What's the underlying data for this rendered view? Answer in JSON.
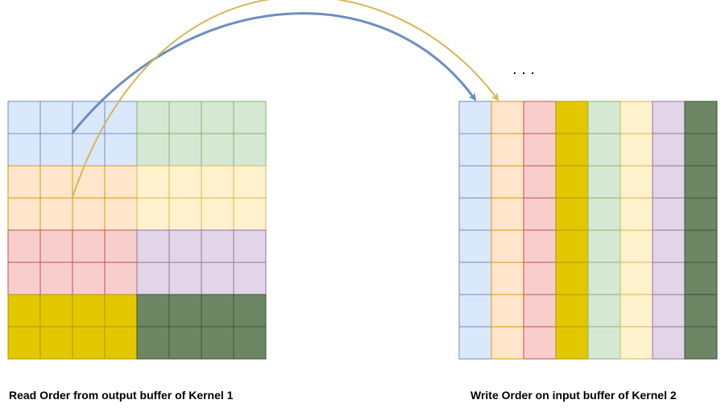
{
  "captions": {
    "left": "Read Order from output buffer of Kernel 1",
    "right": "Write Order on input buffer of Kernel 2"
  },
  "ellipsis": ". . .",
  "palette": {
    "blue": {
      "fill": "#dae8fc",
      "stroke": "#6c8ebf"
    },
    "green": {
      "fill": "#d5e8d4",
      "stroke": "#82b366"
    },
    "orange": {
      "fill": "#ffe6cc",
      "stroke": "#d79b00"
    },
    "yellow": {
      "fill": "#fff2cc",
      "stroke": "#d6b656"
    },
    "red": {
      "fill": "#f8cecc",
      "stroke": "#b85450"
    },
    "purple": {
      "fill": "#e1d5e7",
      "stroke": "#9673a6"
    },
    "gold": {
      "fill": "#e3c800",
      "stroke": "#b09500"
    },
    "darkgreen": {
      "fill": "#6d8764",
      "stroke": "#3a5431"
    }
  },
  "left_matrix": {
    "rows": 8,
    "cols": 8,
    "blocks": [
      [
        "blue",
        "green"
      ],
      [
        "orange",
        "yellow"
      ],
      [
        "red",
        "purple"
      ],
      [
        "gold",
        "darkgreen"
      ]
    ]
  },
  "right_matrix": {
    "rows": 8,
    "columns": [
      "blue",
      "orange",
      "red",
      "gold",
      "green",
      "yellow",
      "purple",
      "darkgreen"
    ]
  },
  "arrows": [
    {
      "name": "blue-arrow",
      "color": "#6c8ebf"
    },
    {
      "name": "yellow-arrow",
      "color": "#d6b656"
    }
  ]
}
